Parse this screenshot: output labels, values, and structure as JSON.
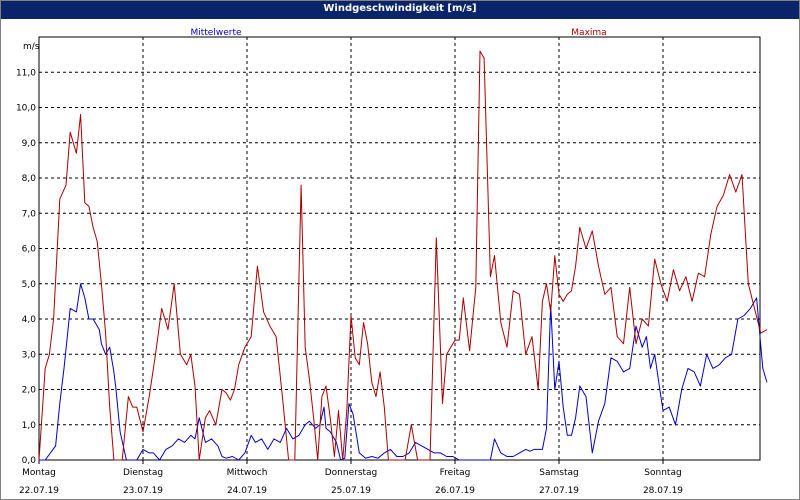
{
  "window": {
    "title": "Windgeschwindigkeit [m/s]"
  },
  "chart_data": {
    "type": "line",
    "title": "Windgeschwindigkeit [m/s]",
    "ylabel": "m/s",
    "xlabel": "",
    "ylim": [
      0,
      12
    ],
    "xlim": [
      0,
      7
    ],
    "yticks": [
      "0,0",
      "1,0",
      "2,0",
      "3,0",
      "4,0",
      "5,0",
      "6,0",
      "7,0",
      "8,0",
      "9,0",
      "10,0",
      "11,0"
    ],
    "days": [
      {
        "name": "Montag",
        "date": "22.07.19"
      },
      {
        "name": "Dienstag",
        "date": "23.07.19"
      },
      {
        "name": "Mittwoch",
        "date": "24.07.19"
      },
      {
        "name": "Donnerstag",
        "date": "25.07.19"
      },
      {
        "name": "Freitag",
        "date": "26.07.19"
      },
      {
        "name": "Samstag",
        "date": "27.07.19"
      },
      {
        "name": "Sonntag",
        "date": "28.07.19"
      }
    ],
    "grid": true,
    "colors": {
      "mean": "#0000cc",
      "max": "#aa0000",
      "grid": "#000000"
    },
    "series": [
      {
        "name": "Mittelwerte",
        "x": [
          0,
          0.06,
          0.16,
          0.2,
          0.24,
          0.3,
          0.36,
          0.4,
          0.44,
          0.48,
          0.52,
          0.58,
          0.6,
          0.64,
          0.68,
          0.72,
          0.74,
          0.78,
          0.84,
          0.9,
          0.94,
          1.0,
          1.06,
          1.1,
          1.16,
          1.22,
          1.28,
          1.34,
          1.4,
          1.46,
          1.5,
          1.54,
          1.6,
          1.66,
          1.72,
          1.76,
          1.8,
          1.86,
          1.92,
          1.98,
          2.04,
          2.08,
          2.14,
          2.2,
          2.26,
          2.32,
          2.38,
          2.44,
          2.5,
          2.56,
          2.6,
          2.66,
          2.7,
          2.74,
          2.76,
          2.8,
          2.86,
          2.9,
          2.94,
          2.98,
          3.02,
          3.08,
          3.14,
          3.2,
          3.26,
          3.32,
          3.38,
          3.44,
          3.5,
          3.56,
          3.62,
          3.68,
          3.74,
          3.8,
          3.86,
          3.92,
          3.98,
          4.04,
          4.1,
          4.2,
          4.3,
          4.34,
          4.38,
          4.44,
          4.5,
          4.56,
          4.62,
          4.68,
          4.72,
          4.76,
          4.8,
          4.84,
          4.88,
          4.92,
          4.96,
          5.0,
          5.04,
          5.08,
          5.12,
          5.16,
          5.2,
          5.26,
          5.32,
          5.38,
          5.44,
          5.5,
          5.56,
          5.62,
          5.68,
          5.74,
          5.8,
          5.84,
          5.88,
          5.92,
          5.96,
          6.0,
          6.06,
          6.12,
          6.18,
          6.24,
          6.3,
          6.36,
          6.42,
          6.48,
          6.54,
          6.6,
          6.66,
          6.72,
          6.78,
          6.84,
          6.9,
          6.96,
          7.0
        ],
        "values": [
          0.0,
          0.0,
          0.4,
          1.6,
          2.6,
          4.3,
          4.2,
          5.0,
          4.6,
          4.0,
          4.0,
          3.7,
          3.3,
          3.0,
          3.2,
          2.5,
          2.0,
          0.8,
          0.0,
          0.0,
          0.0,
          0.3,
          0.2,
          0.2,
          0.0,
          0.3,
          0.4,
          0.6,
          0.5,
          0.7,
          0.6,
          1.2,
          0.5,
          0.6,
          0.4,
          0.1,
          0.05,
          0.1,
          0.0,
          0.2,
          0.7,
          0.5,
          0.6,
          0.3,
          0.6,
          0.5,
          0.9,
          0.6,
          0.7,
          1.0,
          1.1,
          0.9,
          1.0,
          1.5,
          0.9,
          0.8,
          0.5,
          0.0,
          0.05,
          1.6,
          1.3,
          0.2,
          0.05,
          0.1,
          0.05,
          0.2,
          0.3,
          0.1,
          0.1,
          0.2,
          0.5,
          0.4,
          0.3,
          0.2,
          0.2,
          0.1,
          0.1,
          0.0,
          0.0,
          0.0,
          0.0,
          0.0,
          0.6,
          0.2,
          0.1,
          0.1,
          0.2,
          0.3,
          0.25,
          0.3,
          0.3,
          0.3,
          0.9,
          4.4,
          2.0,
          2.8,
          1.5,
          0.7,
          0.7,
          1.2,
          2.1,
          1.8,
          0.2,
          1.1,
          1.6,
          2.9,
          2.8,
          2.5,
          2.6,
          3.8,
          3.2,
          3.5,
          2.6,
          3.0,
          2.2,
          1.4,
          1.5,
          1.0,
          2.0,
          2.6,
          2.5,
          2.1,
          3.0,
          2.6,
          2.7,
          2.9,
          3.0,
          4.0,
          4.1,
          4.3,
          4.6,
          2.6,
          2.2
        ],
        "color": "#0000cc"
      },
      {
        "name": "Maxima",
        "x": [
          0,
          0.06,
          0.1,
          0.14,
          0.2,
          0.26,
          0.3,
          0.36,
          0.4,
          0.44,
          0.48,
          0.52,
          0.56,
          0.6,
          0.64,
          0.68,
          0.72,
          0.76,
          0.8,
          0.86,
          0.9,
          0.94,
          1.0,
          1.06,
          1.12,
          1.18,
          1.24,
          1.3,
          1.36,
          1.42,
          1.46,
          1.5,
          1.54,
          1.6,
          1.64,
          1.7,
          1.76,
          1.8,
          1.84,
          1.88,
          1.92,
          1.98,
          2.04,
          2.1,
          2.16,
          2.22,
          2.28,
          2.34,
          2.4,
          2.46,
          2.52,
          2.56,
          2.6,
          2.64,
          2.68,
          2.72,
          2.76,
          2.8,
          2.84,
          2.88,
          2.92,
          2.96,
          3.0,
          3.04,
          3.08,
          3.12,
          3.16,
          3.2,
          3.24,
          3.28,
          3.32,
          3.36,
          3.4,
          3.46,
          3.52,
          3.58,
          3.64,
          3.7,
          3.76,
          3.82,
          3.88,
          3.92,
          4.0,
          4.04,
          4.08,
          4.14,
          4.2,
          4.24,
          4.28,
          4.34,
          4.38,
          4.44,
          4.5,
          4.56,
          4.62,
          4.68,
          4.74,
          4.8,
          4.84,
          4.88,
          4.92,
          4.96,
          5.0,
          5.04,
          5.08,
          5.12,
          5.16,
          5.2,
          5.26,
          5.32,
          5.38,
          5.44,
          5.5,
          5.56,
          5.62,
          5.68,
          5.74,
          5.8,
          5.86,
          5.92,
          5.98,
          6.04,
          6.1,
          6.16,
          6.22,
          6.28,
          6.34,
          6.4,
          6.46,
          6.52,
          6.58,
          6.64,
          6.7,
          6.76,
          6.82,
          6.88,
          6.94,
          7.0
        ],
        "values": [
          0.0,
          2.6,
          3.0,
          4.0,
          7.4,
          7.8,
          9.3,
          8.7,
          9.8,
          7.3,
          7.2,
          6.6,
          6.2,
          5.0,
          3.6,
          1.5,
          0.0,
          0.0,
          0.0,
          1.8,
          1.5,
          1.5,
          0.8,
          1.8,
          3.0,
          4.3,
          3.7,
          5.0,
          3.0,
          2.7,
          3.0,
          2.1,
          0.0,
          1.2,
          1.4,
          1.0,
          2.0,
          1.9,
          1.7,
          2.0,
          2.7,
          3.2,
          3.5,
          5.5,
          4.2,
          3.8,
          3.5,
          1.8,
          0.0,
          0.0,
          7.8,
          3.2,
          2.3,
          1.2,
          0.0,
          1.8,
          2.1,
          1.2,
          0.1,
          1.4,
          0.0,
          1.4,
          4.1,
          2.9,
          2.7,
          3.9,
          3.3,
          2.2,
          1.8,
          2.5,
          1.5,
          0.0,
          0.0,
          0.0,
          0.0,
          1.0,
          0.0,
          0.0,
          0.0,
          6.3,
          1.6,
          3.0,
          3.4,
          3.4,
          4.6,
          3.1,
          4.9,
          11.6,
          11.4,
          5.2,
          5.8,
          3.9,
          3.2,
          4.8,
          4.7,
          3.0,
          3.5,
          2.0,
          4.5,
          5.0,
          4.2,
          5.8,
          4.7,
          4.5,
          4.7,
          4.8,
          5.5,
          6.6,
          6.0,
          6.5,
          5.5,
          4.7,
          4.9,
          3.5,
          3.3,
          4.9,
          3.3,
          4.0,
          3.8,
          5.7,
          5.0,
          4.5,
          5.4,
          4.8,
          5.2,
          4.5,
          5.3,
          5.2,
          6.4,
          7.2,
          7.5,
          8.1,
          7.6,
          8.1,
          5.0,
          4.3,
          3.6,
          3.7
        ],
        "color": "#aa0000"
      }
    ]
  }
}
